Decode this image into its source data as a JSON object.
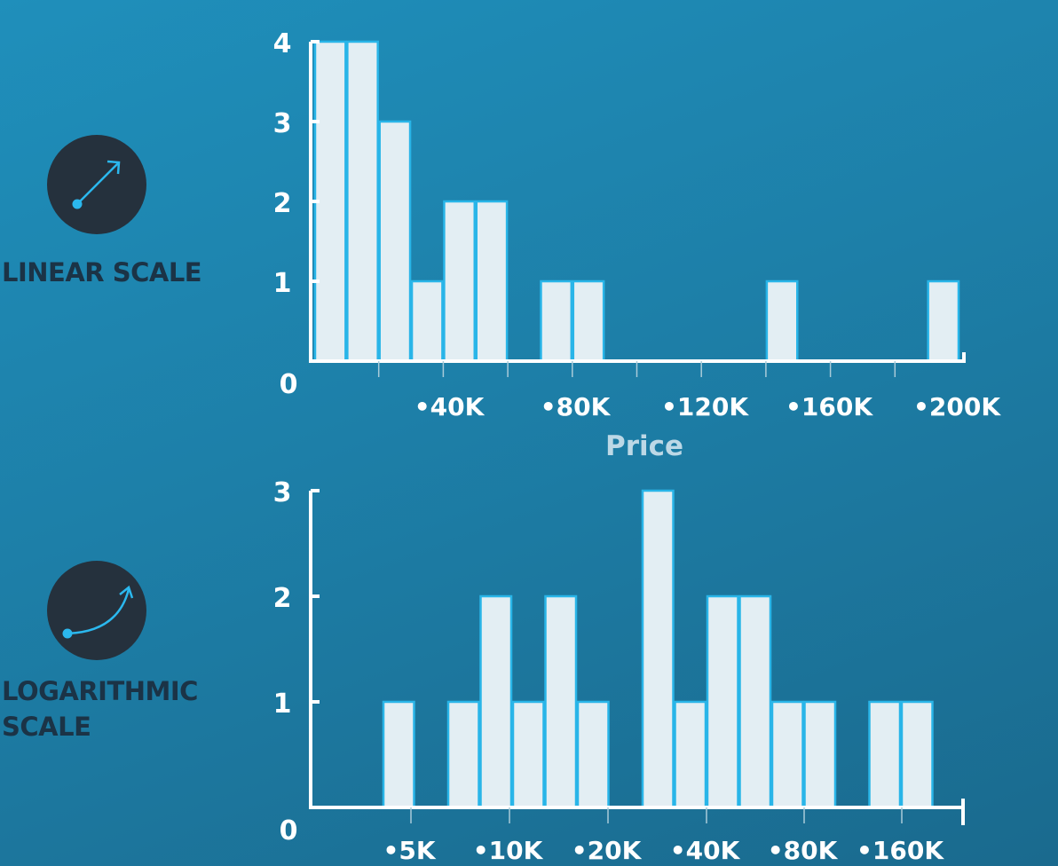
{
  "linear_label": "LINEAR SCALE",
  "log_label_line1": "LOGARITHMIC",
  "log_label_line2": "SCALE",
  "icons": {
    "linear": "linear-arrow-icon",
    "log": "curve-arrow-icon"
  },
  "colors": {
    "bar_fill": "#e3eef3",
    "bar_edge": "#29b5e8",
    "axis": "#ffffff",
    "icon_bg": "#25313d",
    "icon_stroke": "#2bb8ee"
  },
  "chart_data": [
    {
      "type": "bar",
      "title": "",
      "xlabel": "Price",
      "ylabel": "",
      "x_scale": "linear",
      "xlim": [
        0,
        200000
      ],
      "ylim": [
        0,
        4
      ],
      "y_ticks": [
        "0",
        "1",
        "2",
        "3",
        "4"
      ],
      "x_tick_labels": [
        "•40K",
        "•80K",
        "•120K",
        "•160K",
        "•200K"
      ],
      "bins": [
        {
          "start": 0,
          "end": 10000,
          "count": 4
        },
        {
          "start": 10000,
          "end": 20000,
          "count": 4
        },
        {
          "start": 20000,
          "end": 30000,
          "count": 3
        },
        {
          "start": 30000,
          "end": 40000,
          "count": 1
        },
        {
          "start": 40000,
          "end": 50000,
          "count": 2
        },
        {
          "start": 50000,
          "end": 60000,
          "count": 2
        },
        {
          "start": 70000,
          "end": 80000,
          "count": 1
        },
        {
          "start": 80000,
          "end": 90000,
          "count": 1
        },
        {
          "start": 140000,
          "end": 150000,
          "count": 1
        },
        {
          "start": 190000,
          "end": 200000,
          "count": 1
        }
      ]
    },
    {
      "type": "bar",
      "title": "",
      "xlabel": "",
      "ylabel": "",
      "x_scale": "log",
      "ylim": [
        0,
        3
      ],
      "y_ticks": [
        "0",
        "1",
        "2",
        "3"
      ],
      "x_tick_labels": [
        "•5K",
        "•10K",
        "•20K",
        "•40K",
        "•80K",
        "•160K"
      ],
      "bins": [
        {
          "bin": 2,
          "count": 1
        },
        {
          "bin": 4,
          "count": 1
        },
        {
          "bin": 5,
          "count": 2
        },
        {
          "bin": 6,
          "count": 1
        },
        {
          "bin": 7,
          "count": 2
        },
        {
          "bin": 8,
          "count": 1
        },
        {
          "bin": 10,
          "count": 3
        },
        {
          "bin": 11,
          "count": 1
        },
        {
          "bin": 12,
          "count": 2
        },
        {
          "bin": 13,
          "count": 2
        },
        {
          "bin": 14,
          "count": 1
        },
        {
          "bin": 15,
          "count": 1
        },
        {
          "bin": 17,
          "count": 1
        },
        {
          "bin": 18,
          "count": 1
        }
      ]
    }
  ]
}
